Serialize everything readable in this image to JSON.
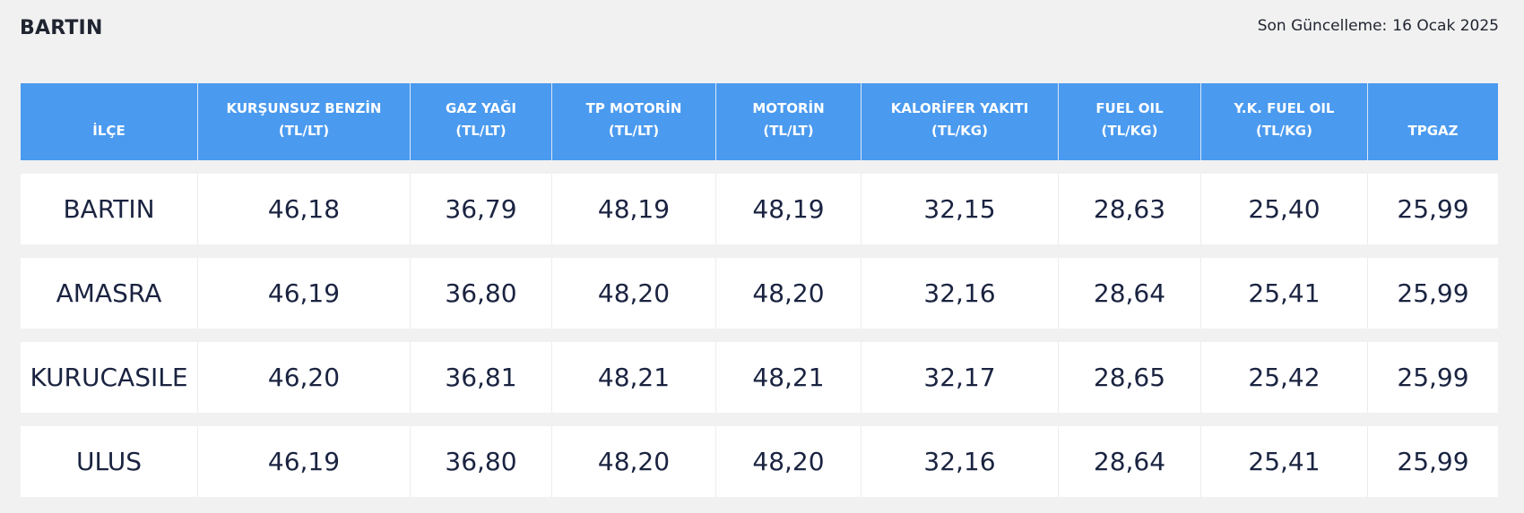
{
  "header": {
    "title": "BARTIN",
    "update_label": "Son Güncelleme:",
    "update_date": "16 Ocak 2025"
  },
  "table": {
    "columns": [
      {
        "name": "İLÇE",
        "unit": ""
      },
      {
        "name": "KURŞUNSUZ BENZİN",
        "unit": "(TL/LT)"
      },
      {
        "name": "GAZ YAĞI",
        "unit": "(TL/LT)"
      },
      {
        "name": "TP MOTORİN",
        "unit": "(TL/LT)"
      },
      {
        "name": "MOTORİN",
        "unit": "(TL/LT)"
      },
      {
        "name": "KALORİFER YAKITI",
        "unit": "(TL/KG)"
      },
      {
        "name": "FUEL OIL",
        "unit": "(TL/KG)"
      },
      {
        "name": "Y.K. FUEL OIL",
        "unit": "(TL/KG)"
      },
      {
        "name": "TPGAZ",
        "unit": ""
      }
    ],
    "rows": [
      [
        "BARTIN",
        "46,18",
        "36,79",
        "48,19",
        "48,19",
        "32,15",
        "28,63",
        "25,40",
        "25,99"
      ],
      [
        "AMASRA",
        "46,19",
        "36,80",
        "48,20",
        "48,20",
        "32,16",
        "28,64",
        "25,41",
        "25,99"
      ],
      [
        "KURUCASILE",
        "46,20",
        "36,81",
        "48,21",
        "48,21",
        "32,17",
        "28,65",
        "25,42",
        "25,99"
      ],
      [
        "ULUS",
        "46,19",
        "36,80",
        "48,20",
        "48,20",
        "32,16",
        "28,64",
        "25,41",
        "25,99"
      ]
    ]
  },
  "colors": {
    "header_bg": "#4a9aef",
    "page_bg": "#f1f1f1",
    "row_bg": "#ffffff",
    "text": "#1a2340"
  }
}
